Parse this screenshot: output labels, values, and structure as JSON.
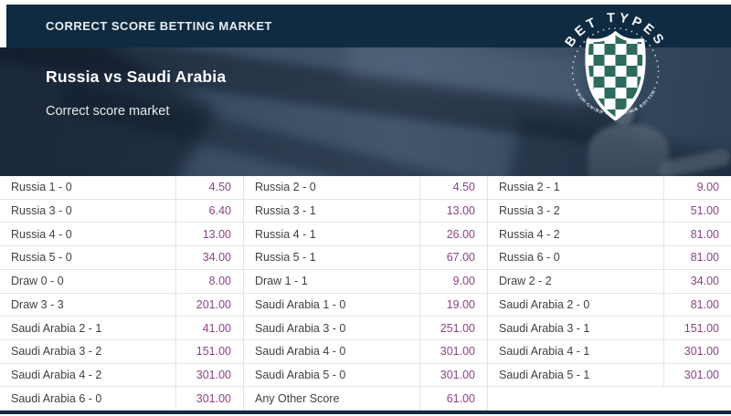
{
  "header": {
    "title": "CORRECT SCORE BETTING MARKET"
  },
  "hero": {
    "title": "Russia vs Saudi Arabia",
    "subtitle": "Correct score market"
  },
  "badge": {
    "top_text": "BET TYPES",
    "bottom_text": "YOUR GUIDE TO BETTING BETTER"
  },
  "colors": {
    "navy": "#0e2b41",
    "hero_blue": "#3b4f65",
    "odds": "#8b4385",
    "label": "#3f3f3f",
    "border": "#e4e4e4",
    "badge_green": "#2e6b5c"
  },
  "table": {
    "columns": [
      {
        "rows": [
          {
            "label": "Russia 1 - 0",
            "odds": "4.50"
          },
          {
            "label": "Russia 3 - 0",
            "odds": "6.40"
          },
          {
            "label": "Russia 4 - 0",
            "odds": "13.00"
          },
          {
            "label": "Russia 5 - 0",
            "odds": "34.00"
          },
          {
            "label": "Draw 0 - 0",
            "odds": "8.00"
          },
          {
            "label": "Draw 3 - 3",
            "odds": "201.00"
          },
          {
            "label": "Saudi Arabia 2 - 1",
            "odds": "41.00"
          },
          {
            "label": "Saudi Arabia 3 - 2",
            "odds": "151.00"
          },
          {
            "label": "Saudi Arabia 4 - 2",
            "odds": "301.00"
          },
          {
            "label": "Saudi Arabia 6 - 0",
            "odds": "301.00"
          }
        ]
      },
      {
        "rows": [
          {
            "label": "Russia 2 - 0",
            "odds": "4.50"
          },
          {
            "label": "Russia 3 - 1",
            "odds": "13.00"
          },
          {
            "label": "Russia 4 - 1",
            "odds": "26.00"
          },
          {
            "label": "Russia 5 - 1",
            "odds": "67.00"
          },
          {
            "label": "Draw 1 - 1",
            "odds": "9.00"
          },
          {
            "label": "Saudi Arabia 1 - 0",
            "odds": "19.00"
          },
          {
            "label": "Saudi Arabia 3 - 0",
            "odds": "251.00"
          },
          {
            "label": "Saudi Arabia 4 - 0",
            "odds": "301.00"
          },
          {
            "label": "Saudi Arabia 5 - 0",
            "odds": "301.00"
          },
          {
            "label": "Any Other Score",
            "odds": "61.00"
          }
        ]
      },
      {
        "rows": [
          {
            "label": "Russia 2 - 1",
            "odds": "9.00"
          },
          {
            "label": "Russia 3 - 2",
            "odds": "51.00"
          },
          {
            "label": "Russia 4 - 2",
            "odds": "81.00"
          },
          {
            "label": "Russia 6 - 0",
            "odds": "81.00"
          },
          {
            "label": "Draw 2 - 2",
            "odds": "34.00"
          },
          {
            "label": "Saudi Arabia 2 - 0",
            "odds": "81.00"
          },
          {
            "label": "Saudi Arabia 3 - 1",
            "odds": "151.00"
          },
          {
            "label": "Saudi Arabia 4 - 1",
            "odds": "301.00"
          },
          {
            "label": "Saudi Arabia 5 - 1",
            "odds": "301.00"
          },
          {
            "label": "",
            "odds": ""
          }
        ]
      }
    ]
  }
}
